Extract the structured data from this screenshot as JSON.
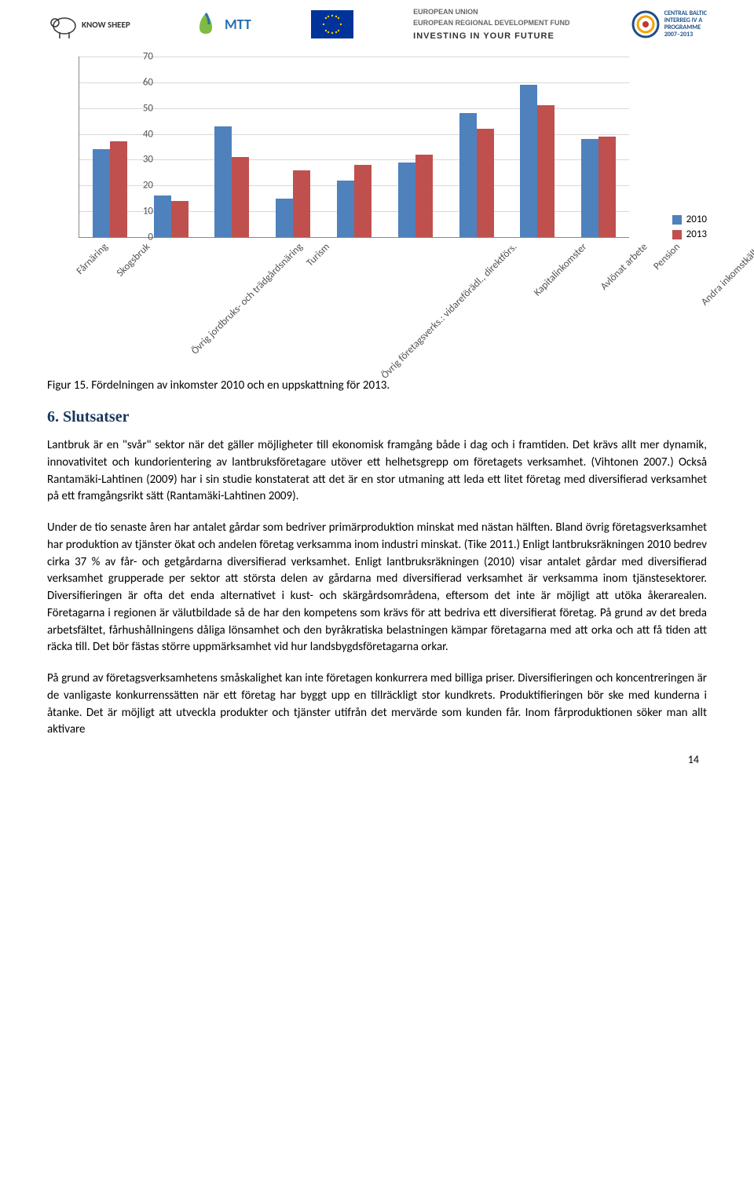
{
  "logos": {
    "knowsheep": "KNOW SHEEP",
    "mtt": "MTT",
    "eu_flag": "EU",
    "eu_text": {
      "line1": "EUROPEAN UNION",
      "line2": "EUROPEAN REGIONAL DEVELOPMENT FUND",
      "line3": "INVESTING IN YOUR FUTURE"
    },
    "interreg": {
      "line1": "CENTRAL BALTIC",
      "line2": "INTERREG IV A",
      "line3": "PROGRAMME",
      "line4": "2007–2013"
    }
  },
  "chart": {
    "type": "bar",
    "ylim": [
      0,
      70
    ],
    "ytick_step": 10,
    "yticks": [
      0,
      10,
      20,
      30,
      40,
      50,
      60,
      70
    ],
    "grid_color": "#d9d9d9",
    "axis_color": "#888888",
    "series": [
      {
        "name": "2010",
        "color": "#4f81bd"
      },
      {
        "name": "2013",
        "color": "#c0504d"
      }
    ],
    "categories": [
      "Fårnäring",
      "Skogsbruk",
      "Övrig jordbruks- och trädgårdsnäring",
      "Turism",
      "Övrig företagsverks.: vidareförädl., direktförs.",
      "Kapitalinkomster",
      "Avlönat arbete",
      "Pension",
      "Andra inkomstkällor"
    ],
    "values_2010": [
      34,
      16,
      43,
      15,
      22,
      29,
      48,
      59,
      38
    ],
    "values_2013": [
      37,
      14,
      31,
      26,
      28,
      32,
      42,
      51,
      39
    ],
    "legend_labels": [
      "2010",
      "2013"
    ]
  },
  "caption": "Figur 15. Fördelningen av inkomster 2010 och en uppskattning för 2013.",
  "heading": "6.  Slutsatser",
  "paragraphs": [
    "Lantbruk är en \"svår\" sektor när det gäller möjligheter till ekonomisk framgång både i dag och i framtiden. Det krävs allt mer dynamik, innovativitet och kundorientering av lantbruksföretagare utöver ett helhetsgrepp om företagets verksamhet. (Vihtonen 2007.) Också Rantamäki-Lahtinen (2009) har i sin studie konstaterat att det är en stor utmaning att leda ett litet företag med diversifierad verksamhet på ett framgångsrikt sätt (Rantamäki-Lahtinen 2009).",
    "Under de tio senaste åren har antalet gårdar som bedriver primärproduktion minskat med nästan hälften. Bland övrig företagsverksamhet har produktion av tjänster ökat och andelen företag verksamma inom industri minskat. (Tike 2011.) Enligt lantbruksräkningen 2010 bedrev cirka 37 % av får- och getgårdarna diversifierad verksamhet. Enligt lantbruksräkningen (2010) visar antalet gårdar med diversifierad verksamhet grupperade per sektor att största delen av gårdarna med diversifierad verksamhet är verksamma inom tjänstesektorer. Diversifieringen är ofta det enda alternativet i kust- och skärgårdsområdena, eftersom det inte är möjligt att utöka åkerarealen. Företagarna i regionen är välutbildade så de har den kompetens som krävs för att bedriva ett diversifierat företag. På grund av det breda arbetsfältet, fårhushållningens dåliga lönsamhet och den byråkratiska belastningen kämpar företagarna med att orka och att få tiden att räcka till. Det bör fästas större uppmärksamhet vid hur landsbygdsföretagarna orkar.",
    "På grund av företagsverksamhetens småskalighet kan inte företagen konkurrera med billiga priser. Diversifieringen och koncentreringen är de vanligaste konkurrenssätten när ett företag har byggt upp en tillräckligt stor kundkrets. Produktifieringen bör ske med kunderna i åtanke. Det är möjligt att utveckla produkter och tjänster utifrån det mervärde som kunden får. Inom fårproduktionen söker man allt aktivare"
  ],
  "page_number": "14"
}
